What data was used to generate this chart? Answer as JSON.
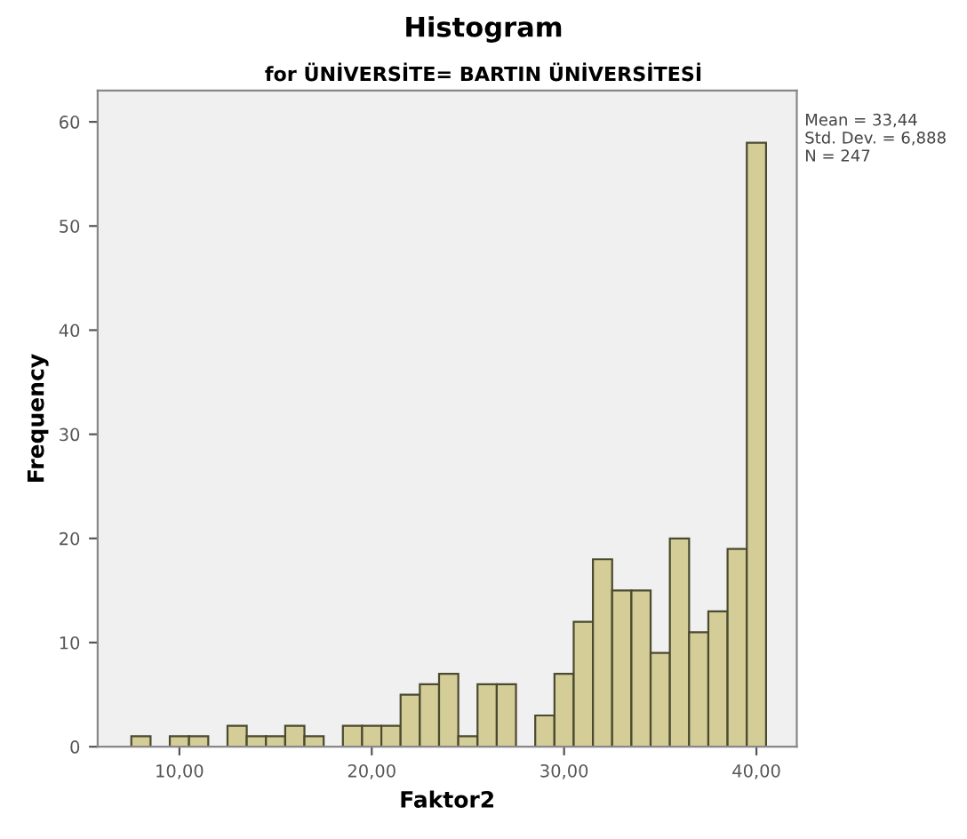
{
  "chart_data": {
    "type": "histogram",
    "title": "Histogram",
    "subtitle": "for ÜNİVERSİTE= BARTIN ÜNİVERSİTESİ",
    "xlabel": "Faktor2",
    "ylabel": "Frequency",
    "bins": [
      7.5,
      8.5,
      9.5,
      10.5,
      11.5,
      12.5,
      13.5,
      14.5,
      15.5,
      16.5,
      17.5,
      18.5,
      19.5,
      20.5,
      21.5,
      22.5,
      23.5,
      24.5,
      25.5,
      26.5,
      27.5,
      28.5,
      29.5,
      30.5,
      31.5,
      32.5,
      33.5,
      34.5,
      35.5,
      36.5,
      37.5,
      38.5,
      39.5,
      40.5
    ],
    "values": [
      1,
      0,
      1,
      1,
      0,
      2,
      1,
      1,
      2,
      1,
      0,
      2,
      2,
      2,
      5,
      6,
      7,
      1,
      6,
      6,
      0,
      3,
      7,
      12,
      18,
      15,
      15,
      9,
      20,
      11,
      13,
      19,
      58
    ],
    "color": "#d4cd98",
    "xlim": [
      5.75,
      42.1
    ],
    "ylim": [
      0,
      63
    ],
    "xticks": [
      {
        "value": 10,
        "label": "10,00"
      },
      {
        "value": 20,
        "label": "20,00"
      },
      {
        "value": 30,
        "label": "30,00"
      },
      {
        "value": 40,
        "label": "40,00"
      }
    ],
    "yticks": [
      0,
      10,
      20,
      30,
      40,
      50,
      60
    ],
    "annotations": [
      "Mean = 33,44",
      "Std. Dev. = 6,888",
      "N = 247"
    ],
    "grid": false,
    "legend": false
  }
}
